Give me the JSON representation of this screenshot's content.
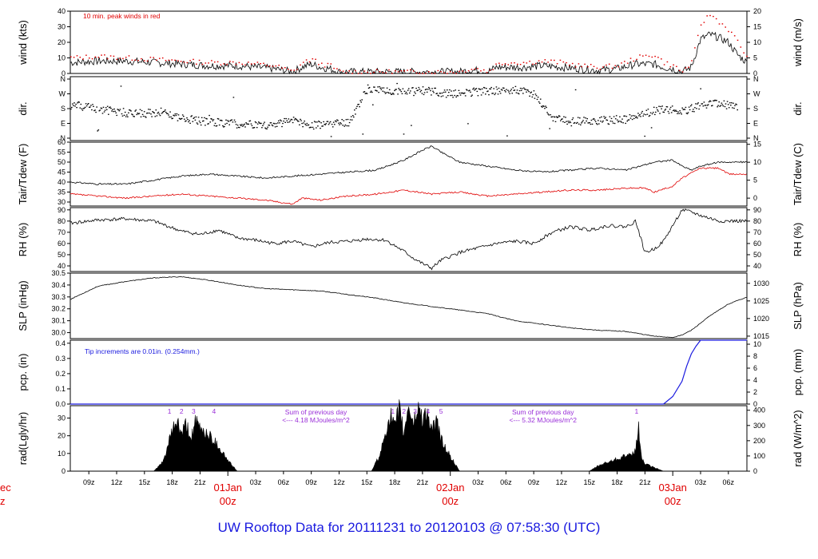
{
  "title": "UW Rooftop Data for 20111231  to  20120103 @ 07:58:30  (UTC)",
  "colors": {
    "black": "#000000",
    "red": "#e00000",
    "blue": "#1a1adf",
    "purple": "#9a2fd8",
    "title": "#1a1adf"
  },
  "x_axis": {
    "tick_labels": [
      "09z",
      "12z",
      "15z",
      "18z",
      "21z",
      "03z",
      "06z",
      "09z",
      "12z",
      "15z",
      "18z",
      "21z",
      "03z",
      "06z",
      "09z",
      "12z",
      "15z",
      "18z",
      "21z",
      "03z",
      "06z"
    ],
    "tick_hours": [
      9,
      12,
      15,
      18,
      21,
      27,
      30,
      33,
      36,
      39,
      42,
      45,
      51,
      54,
      57,
      60,
      63,
      66,
      69,
      75,
      78
    ],
    "day_labels": [
      {
        "date": "01Jan",
        "time": "00z",
        "hour": 24
      },
      {
        "date": "02Jan",
        "time": "00z",
        "hour": 48
      },
      {
        "date": "03Jan",
        "time": "00z",
        "hour": 72
      }
    ],
    "edge_date": "ec",
    "edge_time": "z",
    "range_hours": [
      7,
      80
    ]
  },
  "chart_data": [
    {
      "type": "line",
      "panel": "wind",
      "ylabel_left": "wind (kts)",
      "ylabel_right": "wind (m/s)",
      "yticks_left": [
        "0",
        "10",
        "20",
        "30",
        "40"
      ],
      "ylim_left": [
        0,
        40
      ],
      "yticks_right": [
        "0",
        "5",
        "10",
        "15",
        "20"
      ],
      "ylim_right": [
        0,
        20
      ],
      "annotation": "10 min. peak winds in red",
      "series": [
        {
          "x": [
            7,
            10,
            13,
            16,
            19,
            22,
            24,
            25,
            27,
            29,
            31,
            32,
            33,
            34,
            35,
            36,
            38,
            40,
            42,
            44,
            46,
            47,
            48,
            49,
            50,
            51,
            52,
            53,
            54,
            56,
            58,
            60,
            62,
            64,
            66,
            68,
            70,
            71,
            72,
            73,
            74,
            75,
            76,
            77,
            78,
            79,
            80
          ],
          "y": [
            7,
            8,
            8,
            7,
            6,
            5,
            5,
            5,
            4,
            3,
            1,
            4,
            6,
            4,
            3,
            1,
            1,
            1,
            1,
            1,
            1,
            1,
            1,
            1,
            2,
            2,
            1,
            4,
            4,
            4,
            5,
            4,
            3,
            2,
            3,
            6,
            6,
            4,
            3,
            1,
            4,
            22,
            25,
            23,
            20,
            12,
            7
          ]
        },
        {
          "x": [
            7,
            10,
            13,
            16,
            19,
            22,
            24,
            25,
            27,
            29,
            31,
            32,
            33,
            34,
            35,
            36,
            38,
            40,
            42,
            44,
            46,
            47,
            48,
            49,
            50,
            51,
            52,
            53,
            54,
            56,
            58,
            60,
            62,
            64,
            66,
            68,
            70,
            71,
            72,
            73,
            74,
            75,
            76,
            77,
            78,
            79,
            80
          ],
          "y": [
            10,
            11,
            10,
            9,
            8,
            7,
            7,
            7,
            6,
            5,
            1,
            7,
            9,
            6,
            5,
            1,
            1,
            1,
            1,
            1,
            1,
            1,
            1,
            1,
            3,
            3,
            1,
            6,
            7,
            7,
            8,
            7,
            5,
            4,
            5,
            10,
            12,
            7,
            5,
            1,
            7,
            32,
            38,
            33,
            28,
            20,
            10
          ]
        }
      ]
    },
    {
      "type": "scatter",
      "panel": "direction",
      "ylabel_left": "dir.",
      "ylabel_right": "dir.",
      "yticks_left": [
        "N",
        "E",
        "S",
        "W",
        "N"
      ],
      "yticks_right": [
        "N",
        "E",
        "S",
        "W",
        "N"
      ],
      "ylim": [
        0,
        360
      ],
      "series": [
        {
          "x": [
            7,
            9,
            11,
            13,
            15,
            17,
            19,
            21,
            23,
            25,
            27,
            29,
            31,
            33,
            35,
            37,
            39,
            41,
            43,
            45,
            47,
            49,
            51,
            53,
            55,
            57,
            59,
            61,
            63,
            65,
            67,
            69,
            71,
            73,
            75,
            77,
            79
          ],
          "y": [
            200,
            190,
            170,
            155,
            150,
            160,
            120,
            105,
            95,
            85,
            80,
            80,
            110,
            75,
            90,
            100,
            300,
            295,
            280,
            290,
            275,
            270,
            285,
            290,
            295,
            270,
            120,
            100,
            105,
            110,
            115,
            150,
            180,
            160,
            200,
            210,
            190
          ]
        }
      ]
    },
    {
      "type": "line",
      "panel": "temperature",
      "ylabel_left": "Tair/Tdew (F)",
      "ylabel_right": "Tair/Tdew (C)",
      "yticks_left": [
        "30",
        "35",
        "40",
        "45",
        "50",
        "55",
        "60"
      ],
      "ylim_left": [
        28,
        60
      ],
      "yticks_right": [
        "0",
        "5",
        "10",
        "15"
      ],
      "ylim_right": [
        -2.2,
        15.6
      ],
      "series": [
        {
          "x": [
            7,
            10,
            13,
            16,
            19,
            22,
            25,
            28,
            31,
            34,
            37,
            40,
            43,
            45,
            46,
            47,
            49,
            52,
            55,
            58,
            61,
            64,
            67,
            70,
            72,
            73,
            74,
            75,
            77,
            80
          ],
          "y": [
            40,
            39,
            39,
            41,
            43,
            44,
            43,
            42,
            43,
            44,
            45,
            46,
            51,
            56,
            58,
            55,
            50,
            48,
            46,
            45,
            46,
            47,
            46,
            50,
            51,
            48,
            46,
            48,
            50,
            50
          ]
        },
        {
          "x": [
            7,
            10,
            13,
            16,
            19,
            22,
            25,
            28,
            31,
            32,
            34,
            37,
            40,
            43,
            46,
            49,
            52,
            55,
            58,
            61,
            64,
            67,
            69,
            70,
            72,
            73,
            75,
            77,
            78,
            80
          ],
          "y": [
            34,
            33,
            32,
            33,
            34,
            33,
            32,
            31,
            29,
            32,
            31,
            33,
            34,
            36,
            34,
            35,
            33,
            34,
            35,
            36,
            36,
            37,
            37,
            35,
            38,
            42,
            47,
            47,
            44,
            44
          ]
        }
      ]
    },
    {
      "type": "line",
      "panel": "rh",
      "ylabel_left": "RH (%)",
      "ylabel_right": "RH (%)",
      "yticks": [
        "40",
        "50",
        "60",
        "70",
        "80",
        "90"
      ],
      "ylim": [
        35,
        92
      ],
      "series": [
        {
          "x": [
            7,
            10,
            13,
            16,
            19,
            21,
            23,
            25,
            27,
            29,
            31,
            33,
            35,
            37,
            39,
            41,
            43,
            44,
            45,
            46,
            47,
            49,
            51,
            53,
            55,
            57,
            59,
            61,
            63,
            65,
            67,
            68,
            69,
            70,
            71,
            73,
            74,
            75,
            77,
            80
          ],
          "y": [
            78,
            81,
            82,
            80,
            71,
            68,
            72,
            65,
            63,
            60,
            62,
            57,
            61,
            62,
            64,
            63,
            53,
            47,
            42,
            38,
            45,
            52,
            56,
            60,
            62,
            60,
            70,
            75,
            72,
            76,
            75,
            80,
            52,
            55,
            62,
            90,
            88,
            85,
            80,
            80
          ]
        }
      ]
    },
    {
      "type": "line",
      "panel": "pressure",
      "ylabel_left": "SLP (inHg)",
      "ylabel_right": "SLP (hPa)",
      "yticks_left": [
        "30.0",
        "30.1",
        "30.2",
        "30.3",
        "30.4",
        "30.5"
      ],
      "ylim_left": [
        29.95,
        30.5
      ],
      "yticks_right": [
        "1015",
        "1020",
        "1025",
        "1030"
      ],
      "ylim_right": [
        1014.3,
        1032.9
      ],
      "series": [
        {
          "x": [
            7,
            10,
            13,
            16,
            19,
            22,
            25,
            28,
            31,
            34,
            37,
            40,
            43,
            46,
            49,
            52,
            55,
            58,
            61,
            64,
            67,
            70,
            72,
            73,
            74,
            76,
            78,
            80
          ],
          "y": [
            30.28,
            30.39,
            30.43,
            30.46,
            30.47,
            30.44,
            30.4,
            30.37,
            30.36,
            30.35,
            30.32,
            30.29,
            30.25,
            30.22,
            30.19,
            30.16,
            30.1,
            30.07,
            30.04,
            30.02,
            30.01,
            29.97,
            29.96,
            29.98,
            30.02,
            30.14,
            30.24,
            30.3
          ]
        }
      ]
    },
    {
      "type": "line",
      "panel": "precipitation",
      "ylabel_left": "pcp. (in)",
      "ylabel_right": "pcp. (mm)",
      "yticks_left": [
        "0.0",
        "0.1",
        "0.2",
        "0.3",
        "0.4"
      ],
      "ylim_left": [
        0,
        0.42
      ],
      "yticks_right": [
        "0",
        "2",
        "4",
        "6",
        "8",
        "10"
      ],
      "ylim_right": [
        0,
        10.67
      ],
      "annotation": "Tip increments are 0.01in. (0.254mm.)",
      "series": [
        {
          "x": [
            7,
            71,
            72,
            73,
            73.5,
            74,
            74.5,
            75,
            76,
            80
          ],
          "y": [
            0,
            0,
            0.05,
            0.15,
            0.25,
            0.33,
            0.38,
            0.42,
            0.42,
            0.42
          ]
        }
      ]
    },
    {
      "type": "area",
      "panel": "radiation",
      "ylabel_left": "rad(Lgly/hr)",
      "ylabel_right": "rad (W/m^2)",
      "yticks_left": [
        "0",
        "10",
        "20",
        "30"
      ],
      "ylim_left": [
        0,
        37
      ],
      "yticks_right": [
        "0",
        "100",
        "200",
        "300",
        "400"
      ],
      "ylim_right": [
        0,
        430
      ],
      "annotations": [
        {
          "text": "Sum of previous day",
          "hour": 33.5
        },
        {
          "text": "<--- 4.18 MJoules/m^2",
          "hour": 33.5
        },
        {
          "text": "Sum of previous day",
          "hour": 58
        },
        {
          "text": "<--- 5.32 MJoules/m^2",
          "hour": 58
        }
      ],
      "hour_markers": [
        {
          "label": "1",
          "hour": 17.7
        },
        {
          "label": "2",
          "hour": 19
        },
        {
          "label": "3",
          "hour": 20.3
        },
        {
          "label": "4",
          "hour": 22.5
        },
        {
          "label": "1",
          "hour": 41.8
        },
        {
          "label": "2",
          "hour": 43
        },
        {
          "label": "3",
          "hour": 44.2
        },
        {
          "label": "4",
          "hour": 45.6
        },
        {
          "label": "5",
          "hour": 47
        },
        {
          "label": "1",
          "hour": 68.1
        }
      ],
      "series": [
        {
          "x": [
            16,
            17,
            18,
            18.5,
            19,
            19.5,
            20,
            20.5,
            21,
            22,
            23,
            24,
            25,
            39.5,
            40.5,
            41,
            41.5,
            42,
            42.5,
            43,
            43.5,
            44,
            44.5,
            45,
            45.5,
            46,
            46.5,
            47,
            48,
            49,
            63,
            64,
            65,
            66,
            67,
            67.5,
            68,
            68.3,
            68.6,
            69,
            70,
            71
          ],
          "y": [
            0,
            5,
            22,
            28,
            20,
            26,
            18,
            27,
            24,
            20,
            14,
            6,
            0,
            0,
            10,
            22,
            32,
            24,
            35,
            20,
            38,
            26,
            36,
            30,
            33,
            22,
            28,
            18,
            8,
            0,
            0,
            3,
            5,
            7,
            9,
            8,
            12,
            25,
            8,
            4,
            2,
            0
          ]
        }
      ]
    }
  ]
}
